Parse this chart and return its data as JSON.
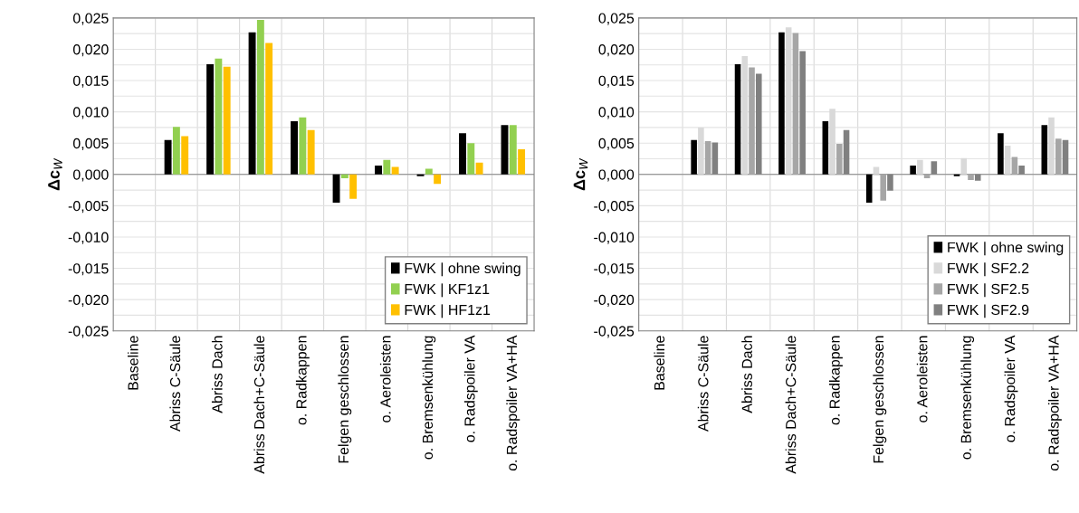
{
  "chart_data": [
    {
      "type": "bar",
      "ylabel": "Δc$_{W}$",
      "categories": [
        "Baseline",
        "Abriss C-Säule",
        "Abriss Dach",
        "Abriss Dach+C-Säule",
        "o. Radkappen",
        "Felgen geschlossen",
        "o. Aeroleisten",
        "o. Bremsenkühlung",
        "o. Radspoiler VA",
        "o. Radspoiler VA+HA"
      ],
      "series": [
        {
          "name": "FWK | ohne swing",
          "color": "#000000",
          "values": [
            0,
            0.0055,
            0.0176,
            0.0227,
            0.0085,
            -0.0045,
            0.0014,
            -0.0003,
            0.0066,
            0.0079
          ]
        },
        {
          "name": "FWK | KF1z1",
          "color": "#92d050",
          "values": [
            0,
            0.0076,
            0.0185,
            0.0247,
            0.0091,
            -0.0006,
            0.0023,
            0.0009,
            0.005,
            0.0079
          ]
        },
        {
          "name": "FWK | HF1z1",
          "color": "#ffc000",
          "values": [
            0,
            0.0061,
            0.0172,
            0.021,
            0.0071,
            -0.0039,
            0.0012,
            -0.0015,
            0.0019,
            0.004
          ]
        }
      ],
      "ylim": [
        -0.025,
        0.025
      ],
      "yticks": [
        {
          "value": -0.025,
          "label": "-0,025"
        },
        {
          "value": -0.0225,
          "label": null
        },
        {
          "value": -0.02,
          "label": "-0,020"
        },
        {
          "value": -0.0175,
          "label": null
        },
        {
          "value": -0.015,
          "label": "-0,015"
        },
        {
          "value": -0.0125,
          "label": null
        },
        {
          "value": -0.01,
          "label": "-0,010"
        },
        {
          "value": -0.0075,
          "label": null
        },
        {
          "value": -0.005,
          "label": "-0,005"
        },
        {
          "value": -0.0025,
          "label": null
        },
        {
          "value": 0,
          "label": "0,000"
        },
        {
          "value": 0.0025,
          "label": null
        },
        {
          "value": 0.005,
          "label": "0,005"
        },
        {
          "value": 0.0075,
          "label": null
        },
        {
          "value": 0.01,
          "label": "0,010"
        },
        {
          "value": 0.0125,
          "label": null
        },
        {
          "value": 0.015,
          "label": "0,015"
        },
        {
          "value": 0.0175,
          "label": null
        },
        {
          "value": 0.02,
          "label": "0,020"
        },
        {
          "value": 0.0225,
          "label": null
        },
        {
          "value": 0.025,
          "label": "0,025"
        }
      ],
      "grid": true,
      "legend": "bottom right"
    },
    {
      "type": "bar",
      "ylabel": "Δc$_{W}$",
      "categories": [
        "Baseline",
        "Abriss C-Säule",
        "Abriss Dach",
        "Abriss Dach+C-Säule",
        "o. Radkappen",
        "Felgen geschlossen",
        "o. Aeroleisten",
        "o. Bremsenkühlung",
        "o. Radspoiler VA",
        "o. Radspoiler VA+HA"
      ],
      "series": [
        {
          "name": "FWK | ohne swing",
          "color": "#000000",
          "values": [
            0,
            0.0055,
            0.0176,
            0.0227,
            0.0085,
            -0.0045,
            0.0014,
            -0.0003,
            0.0066,
            0.0079
          ]
        },
        {
          "name": "FWK | SF2.2",
          "color": "#d9d9d9",
          "values": [
            0,
            0.0075,
            0.0189,
            0.0235,
            0.0105,
            0.0012,
            0.0023,
            0.0026,
            0.0046,
            0.0091
          ]
        },
        {
          "name": "FWK | SF2.5",
          "color": "#a6a6a6",
          "values": [
            0,
            0.0053,
            0.0171,
            0.0226,
            0.0049,
            -0.0042,
            -0.0006,
            -0.0009,
            0.0028,
            0.0057
          ]
        },
        {
          "name": "FWK | SF2.9",
          "color": "#808080",
          "values": [
            0,
            0.0051,
            0.0161,
            0.0197,
            0.0071,
            -0.0026,
            0.0021,
            -0.001,
            0.0014,
            0.0055
          ]
        }
      ],
      "ylim": [
        -0.025,
        0.025
      ],
      "yticks": [
        {
          "value": -0.025,
          "label": "-0,025"
        },
        {
          "value": -0.0225,
          "label": null
        },
        {
          "value": -0.02,
          "label": "-0,020"
        },
        {
          "value": -0.0175,
          "label": null
        },
        {
          "value": -0.015,
          "label": "-0,015"
        },
        {
          "value": -0.0125,
          "label": null
        },
        {
          "value": -0.01,
          "label": "-0,010"
        },
        {
          "value": -0.0075,
          "label": null
        },
        {
          "value": -0.005,
          "label": "-0,005"
        },
        {
          "value": -0.0025,
          "label": null
        },
        {
          "value": 0,
          "label": "0,000"
        },
        {
          "value": 0.0025,
          "label": null
        },
        {
          "value": 0.005,
          "label": "0,005"
        },
        {
          "value": 0.0075,
          "label": null
        },
        {
          "value": 0.01,
          "label": "0,010"
        },
        {
          "value": 0.0125,
          "label": null
        },
        {
          "value": 0.015,
          "label": "0,015"
        },
        {
          "value": 0.0175,
          "label": null
        },
        {
          "value": 0.02,
          "label": "0,020"
        },
        {
          "value": 0.0225,
          "label": null
        },
        {
          "value": 0.025,
          "label": "0,025"
        }
      ],
      "grid": true,
      "legend": "bottom right"
    }
  ]
}
